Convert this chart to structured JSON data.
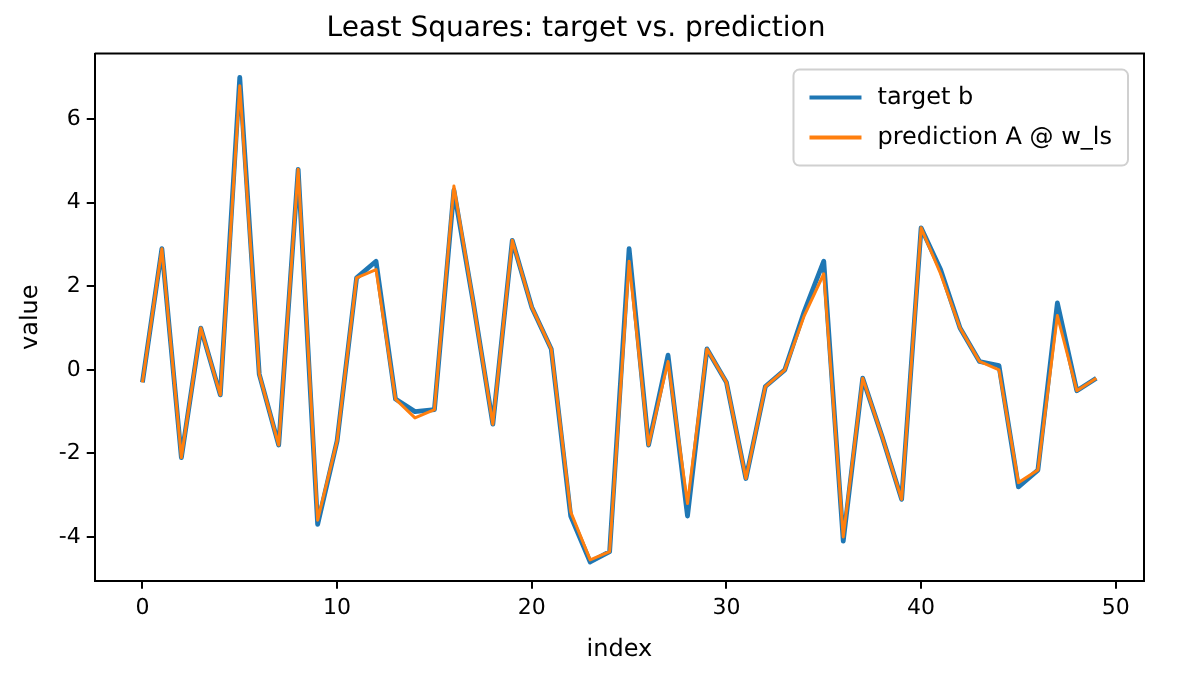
{
  "chart_data": {
    "type": "line",
    "title": "Least Squares: target vs. prediction",
    "xlabel": "index",
    "ylabel": "value",
    "x": [
      0,
      1,
      2,
      3,
      4,
      5,
      6,
      7,
      8,
      9,
      10,
      11,
      12,
      13,
      14,
      15,
      16,
      17,
      18,
      19,
      20,
      21,
      22,
      23,
      24,
      25,
      26,
      27,
      28,
      29,
      30,
      31,
      32,
      33,
      34,
      35,
      36,
      37,
      38,
      39,
      40,
      41,
      42,
      43,
      44,
      45,
      46,
      47,
      48,
      49
    ],
    "series": [
      {
        "name": "target b",
        "color": "#1f77b4",
        "values": [
          -0.3,
          2.9,
          -2.1,
          1.0,
          -0.6,
          7.0,
          -0.1,
          -1.8,
          4.8,
          -3.7,
          -1.7,
          2.2,
          2.6,
          -0.7,
          -1.0,
          -0.95,
          4.3,
          1.6,
          -1.3,
          3.1,
          1.5,
          0.5,
          -3.5,
          -4.6,
          -4.35,
          2.9,
          -1.8,
          0.35,
          -3.5,
          0.5,
          -0.3,
          -2.6,
          -0.4,
          0.0,
          1.4,
          2.6,
          -4.1,
          -0.2,
          -1.6,
          -3.1,
          3.4,
          2.4,
          1.0,
          0.2,
          0.1,
          -2.8,
          -2.4,
          1.6,
          -0.5,
          -0.2
        ]
      },
      {
        "name": "prediction A @ w_ls",
        "color": "#ff7f0e",
        "values": [
          -0.3,
          2.9,
          -2.1,
          1.0,
          -0.6,
          6.8,
          -0.1,
          -1.8,
          4.8,
          -3.6,
          -1.7,
          2.2,
          2.4,
          -0.7,
          -1.15,
          -0.95,
          4.4,
          1.6,
          -1.3,
          3.1,
          1.5,
          0.5,
          -3.4,
          -4.55,
          -4.35,
          2.6,
          -1.8,
          0.2,
          -3.2,
          0.5,
          -0.3,
          -2.6,
          -0.4,
          0.0,
          1.3,
          2.3,
          -4.0,
          -0.2,
          -1.6,
          -3.1,
          3.4,
          2.3,
          1.0,
          0.2,
          0.0,
          -2.7,
          -2.4,
          1.3,
          -0.5,
          -0.2
        ]
      }
    ],
    "xlim": [
      -2.45,
      51.45
    ],
    "xticks": [
      0,
      10,
      20,
      30,
      40,
      50
    ],
    "ylim": [
      -5.05,
      7.57
    ],
    "yticks": [
      -4,
      -2,
      0,
      2,
      4,
      6
    ],
    "grid": false,
    "legend": "top right",
    "marker": "none",
    "line_style": "solid"
  }
}
